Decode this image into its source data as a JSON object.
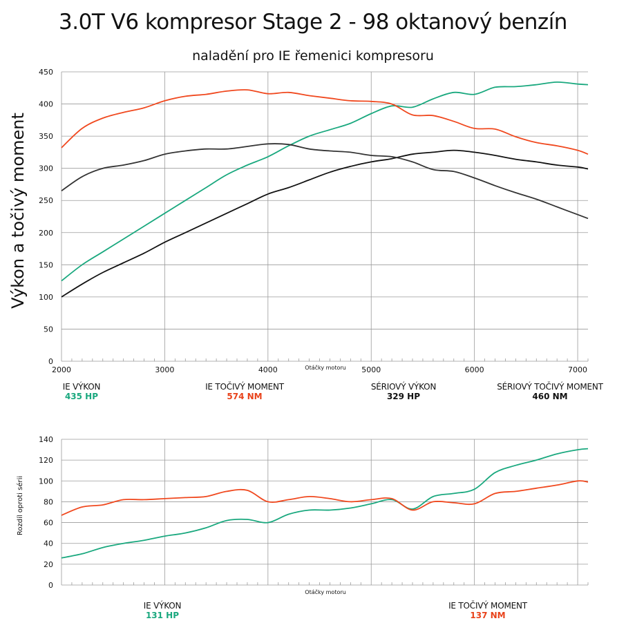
{
  "title": "3.0T V6 kompresor Stage 2 - 98 oktanový benzín",
  "subtitle": "naladění pro IE řemenici kompresoru",
  "colors": {
    "ie_power": "#19a87e",
    "ie_torque": "#f0481e",
    "stock_power": "#111111",
    "stock_torque": "#333333",
    "grid": "#9a9a9a"
  },
  "legend_top": [
    {
      "label": "IE VÝKON",
      "value": "435 HP"
    },
    {
      "label": "IE TOČIVÝ MOMENT",
      "value": "574 NM"
    },
    {
      "label": "SÉRIOVÝ VÝKON",
      "value": "329 HP"
    },
    {
      "label": "SÉRIOVÝ TOČIVÝ MOMENT",
      "value": "460 NM"
    }
  ],
  "legend_bottom": [
    {
      "label": "IE VÝKON",
      "value": "131 HP"
    },
    {
      "label": "IE TOČIVÝ MOMENT",
      "value": "137 NM"
    }
  ],
  "chart_data": [
    {
      "type": "line",
      "title": "",
      "xlabel": "Otáčky motoru",
      "ylabel": "Výkon a točivý moment",
      "xlim": [
        2000,
        7100
      ],
      "ylim": [
        0,
        450
      ],
      "xticks": [
        "2000",
        "3000",
        "4000",
        "5000",
        "6000",
        "7000"
      ],
      "xtick_values": [
        2000,
        3000,
        4000,
        5000,
        6000,
        7000
      ],
      "yticks": [
        "0",
        "50",
        "100",
        "150",
        "200",
        "250",
        "300",
        "350",
        "400",
        "450"
      ],
      "ytick_values": [
        0,
        50,
        100,
        150,
        200,
        250,
        300,
        350,
        400,
        450
      ],
      "x": [
        2000,
        2200,
        2400,
        2600,
        2800,
        3000,
        3200,
        3400,
        3600,
        3800,
        4000,
        4200,
        4400,
        4600,
        4800,
        5000,
        5200,
        5400,
        5600,
        5800,
        6000,
        6200,
        6400,
        6600,
        6800,
        7000,
        7100
      ],
      "series": [
        {
          "name": "IE výkon",
          "color": "#19a87e",
          "values": [
            125,
            150,
            170,
            190,
            210,
            230,
            250,
            270,
            290,
            305,
            318,
            335,
            350,
            360,
            370,
            385,
            397,
            395,
            408,
            418,
            415,
            426,
            427,
            430,
            434,
            431,
            430
          ]
        },
        {
          "name": "IE točivý moment",
          "color": "#f0481e",
          "values": [
            332,
            362,
            378,
            387,
            394,
            405,
            412,
            415,
            420,
            422,
            416,
            418,
            413,
            409,
            405,
            404,
            400,
            383,
            382,
            373,
            362,
            361,
            349,
            340,
            335,
            328,
            322
          ]
        },
        {
          "name": "Sériový výkon",
          "color": "#111111",
          "values": [
            100,
            120,
            138,
            153,
            168,
            185,
            200,
            215,
            230,
            245,
            260,
            270,
            282,
            294,
            303,
            310,
            315,
            322,
            325,
            328,
            325,
            320,
            314,
            310,
            305,
            302,
            299
          ]
        },
        {
          "name": "Sériový točivý moment",
          "color": "#333333",
          "values": [
            265,
            287,
            300,
            305,
            312,
            322,
            327,
            330,
            330,
            334,
            338,
            337,
            330,
            327,
            325,
            320,
            318,
            310,
            298,
            295,
            285,
            273,
            262,
            252,
            240,
            228,
            222
          ]
        }
      ]
    },
    {
      "type": "line",
      "title": "",
      "xlabel": "Otáčky motoru",
      "ylabel": "Rozdíl oproti sérii",
      "xlim": [
        2000,
        7100
      ],
      "ylim": [
        0,
        140
      ],
      "yticks": [
        "0",
        "20",
        "40",
        "60",
        "80",
        "100",
        "120",
        "140"
      ],
      "ytick_values": [
        0,
        20,
        40,
        60,
        80,
        100,
        120,
        140
      ],
      "x": [
        2000,
        2200,
        2400,
        2600,
        2800,
        3000,
        3200,
        3400,
        3600,
        3800,
        4000,
        4200,
        4400,
        4600,
        4800,
        5000,
        5200,
        5400,
        5600,
        5800,
        6000,
        6200,
        6400,
        6600,
        6800,
        7000,
        7100
      ],
      "series": [
        {
          "name": "IE výkon",
          "color": "#19a87e",
          "values": [
            26,
            30,
            36,
            40,
            43,
            47,
            50,
            55,
            62,
            63,
            60,
            68,
            72,
            72,
            74,
            78,
            82,
            73,
            85,
            88,
            92,
            108,
            115,
            120,
            126,
            130,
            131
          ]
        },
        {
          "name": "IE točivý moment",
          "color": "#f0481e",
          "values": [
            67,
            75,
            77,
            82,
            82,
            83,
            84,
            85,
            90,
            91,
            80,
            82,
            85,
            83,
            80,
            82,
            83,
            72,
            80,
            79,
            78,
            88,
            90,
            93,
            96,
            100,
            99
          ]
        }
      ]
    }
  ]
}
